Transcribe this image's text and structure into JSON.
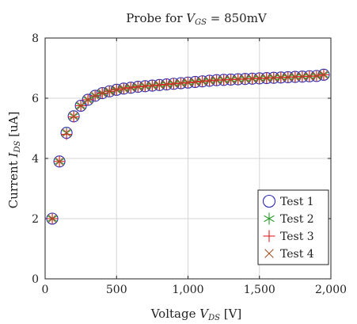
{
  "chart_data": {
    "type": "scatter",
    "title_parts": {
      "prefix": "Probe for ",
      "var": "V",
      "sub": "GS",
      "suffix": " = 850mV"
    },
    "xlabel_parts": {
      "prefix": "Voltage ",
      "var": "V",
      "sub": "DS",
      "suffix": " [V]"
    },
    "ylabel_parts": {
      "prefix": "Current ",
      "var": "I",
      "sub": "DS",
      "suffix": " [uA]"
    },
    "xlim": [
      0,
      2000
    ],
    "ylim": [
      0,
      8
    ],
    "xticks": [
      0,
      500,
      1000,
      1500,
      2000
    ],
    "xtick_labels": [
      "0",
      "500",
      "1,000",
      "1,500",
      "2,000"
    ],
    "yticks": [
      0,
      2,
      4,
      6,
      8
    ],
    "ytick_labels": [
      "0",
      "2",
      "4",
      "6",
      "8"
    ],
    "grid": true,
    "legend_position": "bottom-right",
    "x": [
      50,
      100,
      150,
      200,
      250,
      300,
      350,
      400,
      450,
      500,
      550,
      600,
      650,
      700,
      750,
      800,
      850,
      900,
      950,
      1000,
      1050,
      1100,
      1150,
      1200,
      1250,
      1300,
      1350,
      1400,
      1450,
      1500,
      1550,
      1600,
      1650,
      1700,
      1750,
      1800,
      1850,
      1900,
      1950
    ],
    "series": [
      {
        "name": "Test 1",
        "marker": "circle",
        "color": "#2b2bb5",
        "values": [
          2.0,
          3.9,
          4.85,
          5.4,
          5.75,
          5.95,
          6.08,
          6.17,
          6.23,
          6.28,
          6.32,
          6.35,
          6.38,
          6.4,
          6.42,
          6.44,
          6.46,
          6.48,
          6.5,
          6.52,
          6.54,
          6.56,
          6.58,
          6.6,
          6.61,
          6.62,
          6.63,
          6.64,
          6.65,
          6.66,
          6.67,
          6.68,
          6.69,
          6.7,
          6.71,
          6.72,
          6.73,
          6.74,
          6.78
        ]
      },
      {
        "name": "Test 2",
        "marker": "asterisk",
        "color": "#2a9a2a",
        "values": [
          2.0,
          3.9,
          4.85,
          5.4,
          5.75,
          5.95,
          6.08,
          6.17,
          6.23,
          6.28,
          6.32,
          6.35,
          6.38,
          6.4,
          6.42,
          6.44,
          6.46,
          6.48,
          6.5,
          6.52,
          6.54,
          6.56,
          6.58,
          6.6,
          6.61,
          6.62,
          6.63,
          6.64,
          6.65,
          6.66,
          6.67,
          6.68,
          6.69,
          6.7,
          6.71,
          6.72,
          6.73,
          6.74,
          6.78
        ]
      },
      {
        "name": "Test 3",
        "marker": "plus",
        "color": "#e02020",
        "values": [
          2.0,
          3.9,
          4.8,
          5.38,
          5.75,
          5.95,
          6.08,
          6.17,
          6.23,
          6.28,
          6.32,
          6.35,
          6.38,
          6.4,
          6.42,
          6.44,
          6.46,
          6.48,
          6.5,
          6.52,
          6.54,
          6.56,
          6.58,
          6.6,
          6.61,
          6.62,
          6.63,
          6.64,
          6.65,
          6.66,
          6.67,
          6.68,
          6.69,
          6.7,
          6.71,
          6.72,
          6.73,
          6.74,
          6.78
        ]
      },
      {
        "name": "Test 4",
        "marker": "cross",
        "color": "#a0522d",
        "values": [
          2.0,
          3.9,
          4.85,
          5.4,
          5.75,
          5.95,
          6.08,
          6.17,
          6.23,
          6.28,
          6.32,
          6.35,
          6.38,
          6.4,
          6.42,
          6.44,
          6.46,
          6.48,
          6.5,
          6.52,
          6.54,
          6.56,
          6.58,
          6.6,
          6.61,
          6.62,
          6.63,
          6.64,
          6.65,
          6.66,
          6.67,
          6.68,
          6.69,
          6.7,
          6.71,
          6.72,
          6.73,
          6.74,
          6.78
        ]
      }
    ]
  }
}
